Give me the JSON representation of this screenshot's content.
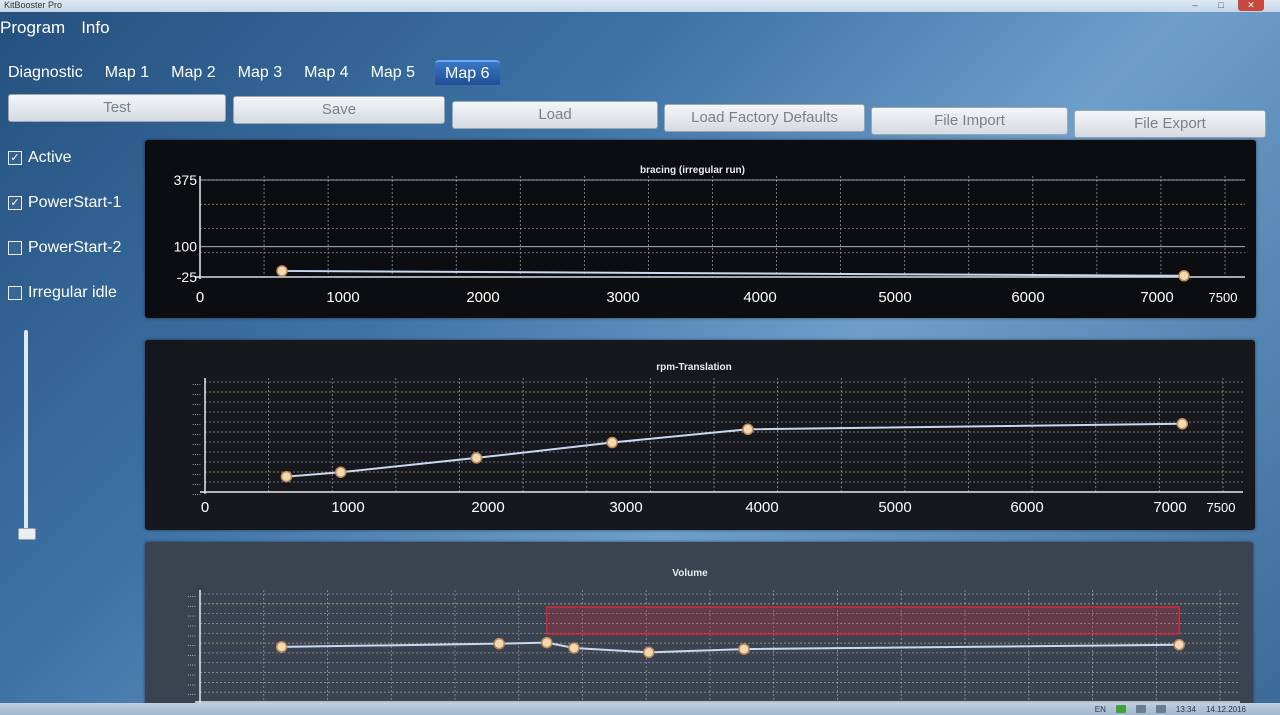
{
  "window": {
    "title": "KitBooster Pro",
    "controls": [
      "–",
      "□",
      "✕"
    ]
  },
  "menu": {
    "program": "Program",
    "info": "Info"
  },
  "tabs": [
    "Diagnostic",
    "Map 1",
    "Map 2",
    "Map 3",
    "Map 4",
    "Map 5",
    "Map 6"
  ],
  "active_tab": "Map 6",
  "toolbar": {
    "test": "Test",
    "save": "Save",
    "load": "Load",
    "load_factory": "Load Factory Defaults",
    "file_import": "File Import",
    "file_export": "File Export"
  },
  "options": [
    {
      "label": "Active",
      "checked": true
    },
    {
      "label": "PowerStart-1",
      "checked": true
    },
    {
      "label": "PowerStart-2",
      "checked": false
    },
    {
      "label": "Irregular idle",
      "checked": false
    }
  ],
  "slider": {
    "level": 0.0
  },
  "taskbar": {
    "lang": "EN",
    "time": "13:34",
    "date": "14.12.2016"
  },
  "colors": {
    "accent_tab": "#2f67b3",
    "curve": "#c9d8f2",
    "point_fill": "#f3d9b1",
    "point_stroke": "#c08a5a",
    "highlight_region": "#d0283a"
  },
  "chart_data": [
    {
      "type": "line",
      "title": "bracing (irregular run)",
      "xlabel": "",
      "ylabel": "",
      "xlim": [
        0,
        7500
      ],
      "ylim": [
        -25,
        375
      ],
      "xticks": [
        "0",
        "1000",
        "2000",
        "3000",
        "4000",
        "5000",
        "6000",
        "7000",
        "7500"
      ],
      "yticks": [
        "375",
        "100",
        "-25"
      ],
      "grid": true,
      "series": [
        {
          "x": [
            600,
            7200
          ],
          "y": [
            0,
            -20
          ]
        }
      ]
    },
    {
      "type": "line",
      "title": "rpm-Translation",
      "xlabel": "",
      "ylabel": "",
      "xlim": [
        0,
        7500
      ],
      "ylim": [
        0,
        10
      ],
      "xticks": [
        "0",
        "1000",
        "2000",
        "3000",
        "4000",
        "5000",
        "6000",
        "7000",
        "7500"
      ],
      "yticks": [],
      "grid": true,
      "series": [
        {
          "x": [
            600,
            1000,
            2000,
            3000,
            4000,
            7200
          ],
          "y": [
            1.4,
            1.8,
            3.1,
            4.5,
            5.7,
            6.2
          ]
        }
      ]
    },
    {
      "type": "line",
      "title": "Volume",
      "xlabel": "",
      "ylabel": "",
      "xlim": [
        0,
        7500
      ],
      "ylim": [
        0,
        10
      ],
      "xticks": [],
      "yticks": [],
      "grid": true,
      "highlight_x": [
        2550,
        7200
      ],
      "highlight_y": [
        6.3,
        8.8
      ],
      "series": [
        {
          "x": [
            600,
            2200,
            2550,
            2750,
            3300,
            4000,
            7200
          ],
          "y": [
            5.1,
            5.4,
            5.5,
            5.0,
            4.6,
            4.9,
            5.3
          ]
        }
      ]
    }
  ]
}
